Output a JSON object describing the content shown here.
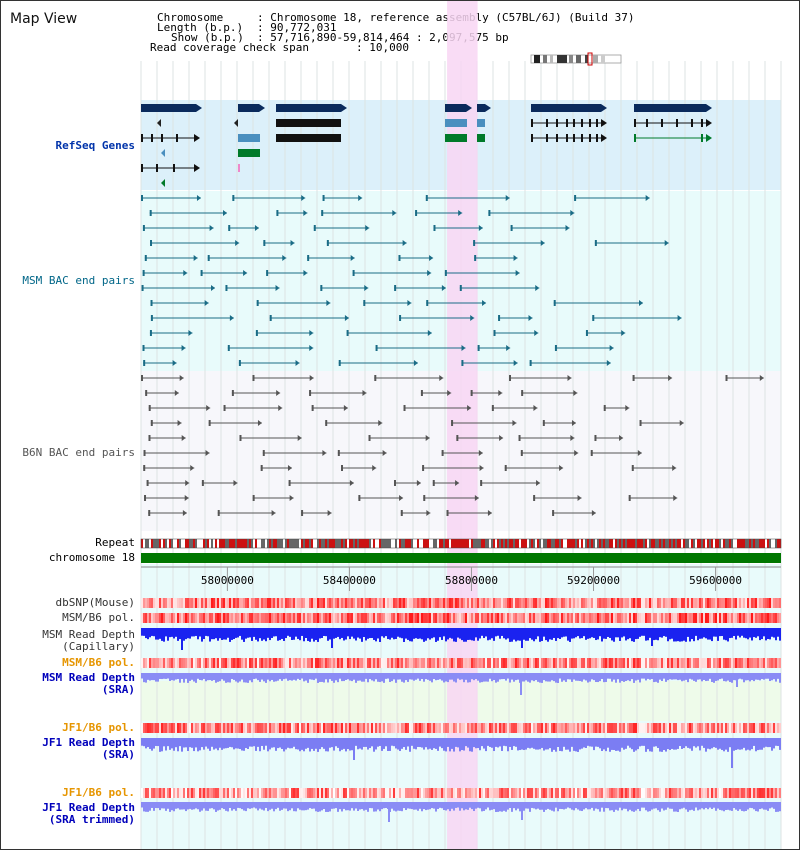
{
  "view": {
    "title": "Map View",
    "header": {
      "chromosome_label": "Chromosome",
      "chromosome_value": ": Chromosome 18, reference assembly (C57BL/6J) (Build 37)",
      "length_label": "Length (b.p.)",
      "length_value": ": 90,772,031",
      "show_label": "Show (b.p.)",
      "show_value": ": 57,716,890-59,814,464 : 2,097,575 bp",
      "span_label": "Read coverage check span",
      "span_value": ": 10,000"
    },
    "x_range_bp": [
      57716890,
      59814464
    ],
    "highlight_bp": [
      58720000,
      58820000
    ]
  },
  "tracks": {
    "refseq": {
      "label": "RefSeq Genes",
      "color": "#0033aa"
    },
    "msm_bac": {
      "label": "MSM BAC end pairs",
      "color": "#006688"
    },
    "b6n_bac": {
      "label": "B6N BAC end pairs",
      "color": "#555555"
    },
    "repeat": {
      "label": "Repeat"
    },
    "chromosome": {
      "label": "chromosome 18",
      "color": "#007700"
    },
    "dbsnp": {
      "label": "dbSNP(Mouse)"
    },
    "msm_b6_pol_1": {
      "label": "MSM/B6 pol."
    },
    "msm_depth_cap": {
      "label_1": "MSM Read Depth",
      "label_2": "(Capillary)"
    },
    "msm_b6_pol_2": {
      "label": "MSM/B6 pol.",
      "color": "#e69500"
    },
    "msm_depth_sra": {
      "label_1": "MSM Read Depth",
      "label_2": "(SRA)",
      "color": "#0000bb"
    },
    "jf1_b6_pol_1": {
      "label": "JF1/B6 pol.",
      "color": "#e69500"
    },
    "jf1_depth_sra": {
      "label_1": "JF1 Read Depth",
      "label_2": "(SRA)",
      "color": "#0000bb"
    },
    "jf1_b6_pol_2": {
      "label": "JF1/B6 pol.",
      "color": "#e69500"
    },
    "jf1_depth_trim": {
      "label_1": "JF1 Read Depth",
      "label_2": "(SRA trimmed)",
      "color": "#0000bb"
    }
  },
  "axis": {
    "ticks": [
      {
        "bp": 58000000,
        "label": "58000000"
      },
      {
        "bp": 58400000,
        "label": "58400000"
      },
      {
        "bp": 58800000,
        "label": "58800000"
      },
      {
        "bp": 59200000,
        "label": "59200000"
      },
      {
        "bp": 59600000,
        "label": "59600000"
      }
    ]
  }
}
